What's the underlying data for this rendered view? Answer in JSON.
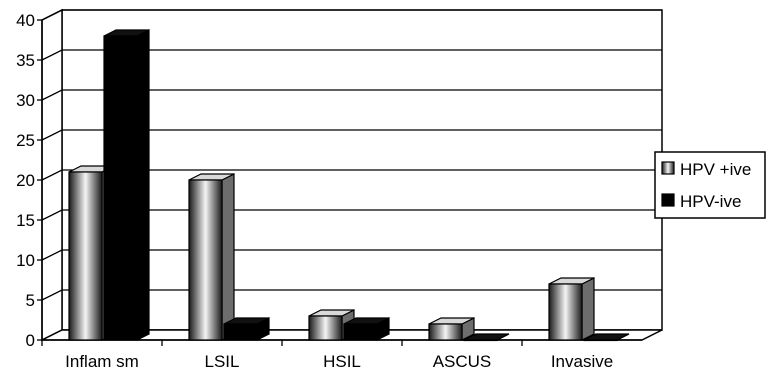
{
  "chart_data": {
    "type": "bar",
    "categories": [
      "Inflam sm",
      "LSIL",
      "HSIL",
      "ASCUS",
      "Invasive"
    ],
    "series": [
      {
        "name": "HPV +ive",
        "values": [
          21,
          20,
          3,
          2,
          7
        ],
        "color": "#c8c8c8"
      },
      {
        "name": "HPV-ive",
        "values": [
          38,
          2,
          2,
          0,
          0
        ],
        "color": "#000000"
      }
    ],
    "title": "",
    "xlabel": "",
    "ylabel": "",
    "ylim": [
      0,
      40
    ],
    "yticks": [
      "0",
      "5",
      "10",
      "15",
      "20",
      "25",
      "30",
      "35",
      "40"
    ],
    "grid": true,
    "legend_position": "right",
    "style": "3d"
  }
}
